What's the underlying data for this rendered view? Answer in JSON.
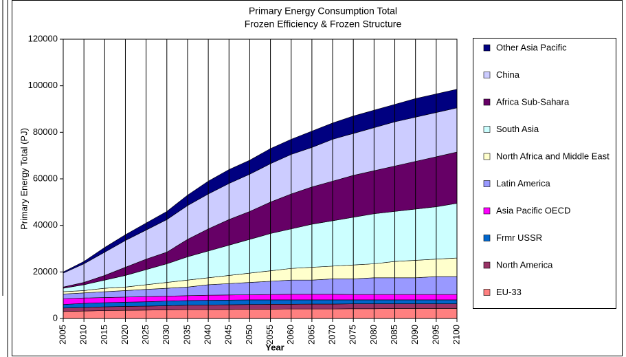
{
  "chart_data": {
    "type": "stacked_area",
    "title": "Primary Energy Consumption Total",
    "subtitle": "Frozen Efficiency & Frozen Structure",
    "x_label": "Year",
    "y_label": "Primary Energy Total (PJ)",
    "categories": [
      "2005",
      "2010",
      "2015",
      "2020",
      "2025",
      "2030",
      "2035",
      "2040",
      "2045",
      "2050",
      "2055",
      "2060",
      "2065",
      "2070",
      "2075",
      "2080",
      "2085",
      "2090",
      "2095",
      "2100"
    ],
    "ylim": [
      0,
      120000
    ],
    "yticks": [
      0,
      20000,
      40000,
      60000,
      80000,
      100000,
      120000
    ],
    "grid": "x",
    "legend": "right",
    "series": [
      {
        "name": "EU-33",
        "color": "#ff8080",
        "values": [
          3000,
          3200,
          3400,
          3500,
          3600,
          3700,
          3800,
          3800,
          3900,
          4000,
          4000,
          4100,
          4100,
          4100,
          4200,
          4200,
          4300,
          4300,
          4300,
          4300
        ]
      },
      {
        "name": "North America",
        "color": "#993366",
        "values": [
          1500,
          1500,
          1600,
          1700,
          1700,
          1800,
          1900,
          2000,
          2000,
          2000,
          2100,
          2000,
          2100,
          2100,
          2100,
          2100,
          2000,
          2000,
          2000,
          2000
        ]
      },
      {
        "name": "Frmr USSR",
        "color": "#0066cc",
        "values": [
          1500,
          1800,
          1800,
          1800,
          1900,
          2000,
          2000,
          2000,
          2000,
          2000,
          1900,
          1900,
          1800,
          1800,
          1700,
          1700,
          1700,
          1700,
          1700,
          1700
        ]
      },
      {
        "name": " Asia Pacific OECD",
        "color": "#ff00ff",
        "values": [
          2500,
          2300,
          2200,
          2200,
          2200,
          2100,
          2100,
          2200,
          2200,
          2200,
          2300,
          2400,
          2400,
          2400,
          2300,
          2300,
          2300,
          2300,
          2300,
          2300
        ]
      },
      {
        "name": "Latin America",
        "color": "#9999ff",
        "values": [
          2000,
          2200,
          2500,
          2800,
          3100,
          3400,
          3700,
          4500,
          4900,
          5300,
          5700,
          6100,
          6100,
          6600,
          6700,
          7200,
          7200,
          7200,
          7700,
          7700
        ]
      },
      {
        "name": "North Africa and Middle East",
        "color": "#ffffcc",
        "values": [
          1000,
          1000,
          1500,
          1500,
          2000,
          2500,
          3000,
          3000,
          3500,
          4000,
          4500,
          5000,
          5500,
          5500,
          6000,
          6000,
          7000,
          7500,
          7500,
          8000
        ]
      },
      {
        "name": "South Asia",
        "color": "#ccffff",
        "values": [
          1500,
          2500,
          3500,
          5000,
          6500,
          8000,
          10000,
          11500,
          13000,
          14500,
          16000,
          17000,
          18500,
          19500,
          20500,
          21500,
          21500,
          22000,
          22500,
          23500
        ]
      },
      {
        "name": "Africa Sub-Sahara",
        "color": "#660066",
        "values": [
          500,
          1000,
          2000,
          3500,
          4500,
          5000,
          7500,
          9500,
          11000,
          12000,
          13500,
          15000,
          16000,
          17000,
          18000,
          18500,
          19500,
          20500,
          21500,
          22000
        ]
      },
      {
        "name": "China",
        "color": "#ccccff",
        "values": [
          6000,
          8000,
          10000,
          11500,
          12500,
          14000,
          14500,
          15000,
          15500,
          16000,
          16500,
          17000,
          17000,
          18000,
          18000,
          18500,
          19000,
          19000,
          19000,
          19000
        ]
      },
      {
        "name": "Other Asia Pacific",
        "color": "#000080",
        "values": [
          500,
          1000,
          2000,
          2500,
          3000,
          3500,
          4500,
          5500,
          6000,
          6000,
          6500,
          6500,
          7000,
          7000,
          7500,
          7500,
          7500,
          8000,
          8000,
          8000
        ]
      }
    ]
  }
}
